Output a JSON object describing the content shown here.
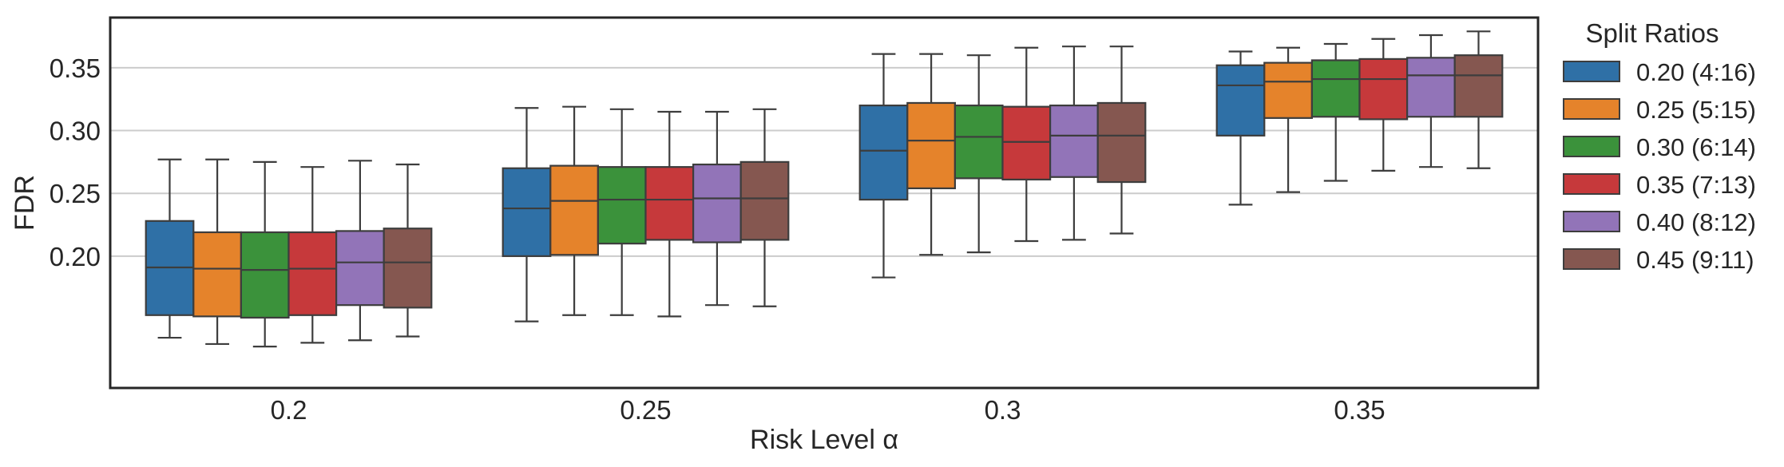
{
  "chart_data": {
    "type": "box",
    "xlabel": "Risk Level α",
    "ylabel": "FDR",
    "ylim": [
      0.095,
      0.39
    ],
    "yticks": [
      "0.20",
      "0.25",
      "0.30",
      "0.35"
    ],
    "ytick_values": [
      0.2,
      0.25,
      0.3,
      0.35
    ],
    "categories": [
      "0.2",
      "0.25",
      "0.3",
      "0.35"
    ],
    "grid": "horizontal",
    "legend": {
      "title": "Split Ratios",
      "position": "outside-right"
    },
    "series": [
      {
        "name": "0.20 (4:16)",
        "color": "#2f70a6",
        "boxes": [
          {
            "whislo": 0.135,
            "q1": 0.153,
            "med": 0.191,
            "q3": 0.228,
            "whishi": 0.277
          },
          {
            "whislo": 0.148,
            "q1": 0.2,
            "med": 0.238,
            "q3": 0.27,
            "whishi": 0.318
          },
          {
            "whislo": 0.183,
            "q1": 0.245,
            "med": 0.284,
            "q3": 0.32,
            "whishi": 0.361
          },
          {
            "whislo": 0.241,
            "q1": 0.296,
            "med": 0.336,
            "q3": 0.352,
            "whishi": 0.363
          }
        ]
      },
      {
        "name": "0.25 (5:15)",
        "color": "#e5832b",
        "boxes": [
          {
            "whislo": 0.13,
            "q1": 0.152,
            "med": 0.19,
            "q3": 0.219,
            "whishi": 0.277
          },
          {
            "whislo": 0.153,
            "q1": 0.201,
            "med": 0.244,
            "q3": 0.272,
            "whishi": 0.319
          },
          {
            "whislo": 0.201,
            "q1": 0.254,
            "med": 0.292,
            "q3": 0.322,
            "whishi": 0.361
          },
          {
            "whislo": 0.251,
            "q1": 0.31,
            "med": 0.339,
            "q3": 0.354,
            "whishi": 0.366
          }
        ]
      },
      {
        "name": "0.30 (6:14)",
        "color": "#3b923b",
        "boxes": [
          {
            "whislo": 0.128,
            "q1": 0.151,
            "med": 0.189,
            "q3": 0.219,
            "whishi": 0.275
          },
          {
            "whislo": 0.153,
            "q1": 0.21,
            "med": 0.245,
            "q3": 0.271,
            "whishi": 0.317
          },
          {
            "whislo": 0.203,
            "q1": 0.262,
            "med": 0.295,
            "q3": 0.32,
            "whishi": 0.36
          },
          {
            "whislo": 0.26,
            "q1": 0.311,
            "med": 0.341,
            "q3": 0.356,
            "whishi": 0.369
          }
        ]
      },
      {
        "name": "0.35 (7:13)",
        "color": "#c6393b",
        "boxes": [
          {
            "whislo": 0.131,
            "q1": 0.153,
            "med": 0.19,
            "q3": 0.219,
            "whishi": 0.271
          },
          {
            "whislo": 0.152,
            "q1": 0.213,
            "med": 0.245,
            "q3": 0.271,
            "whishi": 0.315
          },
          {
            "whislo": 0.212,
            "q1": 0.261,
            "med": 0.291,
            "q3": 0.319,
            "whishi": 0.366
          },
          {
            "whislo": 0.268,
            "q1": 0.309,
            "med": 0.341,
            "q3": 0.357,
            "whishi": 0.373
          }
        ]
      },
      {
        "name": "0.40 (8:12)",
        "color": "#9274b8",
        "boxes": [
          {
            "whislo": 0.133,
            "q1": 0.161,
            "med": 0.195,
            "q3": 0.22,
            "whishi": 0.276
          },
          {
            "whislo": 0.161,
            "q1": 0.211,
            "med": 0.246,
            "q3": 0.273,
            "whishi": 0.315
          },
          {
            "whislo": 0.213,
            "q1": 0.263,
            "med": 0.296,
            "q3": 0.32,
            "whishi": 0.367
          },
          {
            "whislo": 0.271,
            "q1": 0.311,
            "med": 0.344,
            "q3": 0.358,
            "whishi": 0.376
          }
        ]
      },
      {
        "name": "0.45 (9:11)",
        "color": "#855750",
        "boxes": [
          {
            "whislo": 0.136,
            "q1": 0.159,
            "med": 0.195,
            "q3": 0.222,
            "whishi": 0.273
          },
          {
            "whislo": 0.16,
            "q1": 0.213,
            "med": 0.246,
            "q3": 0.275,
            "whishi": 0.317
          },
          {
            "whislo": 0.218,
            "q1": 0.259,
            "med": 0.296,
            "q3": 0.322,
            "whishi": 0.367
          },
          {
            "whislo": 0.27,
            "q1": 0.311,
            "med": 0.344,
            "q3": 0.36,
            "whishi": 0.379
          }
        ]
      }
    ]
  }
}
